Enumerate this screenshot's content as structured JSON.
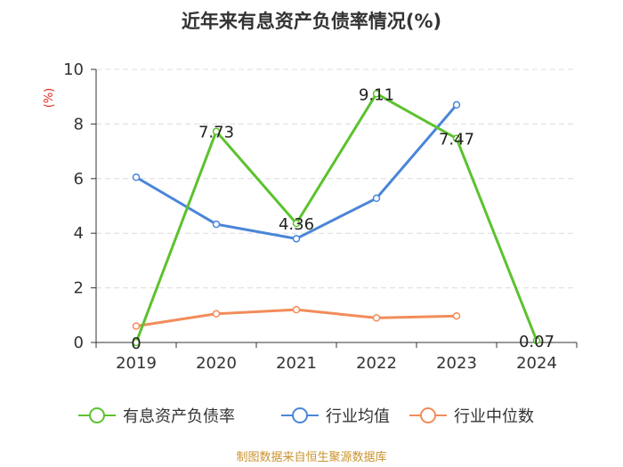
{
  "chart_data": {
    "type": "line",
    "title": "近年来有息资产负债率情况(%)",
    "ylabel": "(%)",
    "categories": [
      "2019",
      "2020",
      "2021",
      "2022",
      "2023",
      "2024"
    ],
    "ylim": [
      0,
      10
    ],
    "yticks": [
      0,
      2,
      4,
      6,
      8,
      10
    ],
    "grid": true,
    "legend_position": "bottom",
    "series": [
      {
        "name": "有息资产负债率",
        "color": "#5cc22e",
        "values": [
          0,
          7.73,
          4.36,
          9.11,
          7.47,
          0.07
        ],
        "labels": [
          "0",
          "7.73",
          "4.36",
          "9.11",
          "7.47",
          "0.07"
        ]
      },
      {
        "name": "行业均值",
        "color": "#4a86d8",
        "values": [
          6.05,
          4.33,
          3.8,
          5.28,
          8.7,
          null
        ]
      },
      {
        "name": "行业中位数",
        "color": "#f28c5a",
        "values": [
          0.6,
          1.05,
          1.2,
          0.9,
          0.97,
          null
        ]
      }
    ],
    "source": "制图数据来自恒生聚源数据库"
  }
}
